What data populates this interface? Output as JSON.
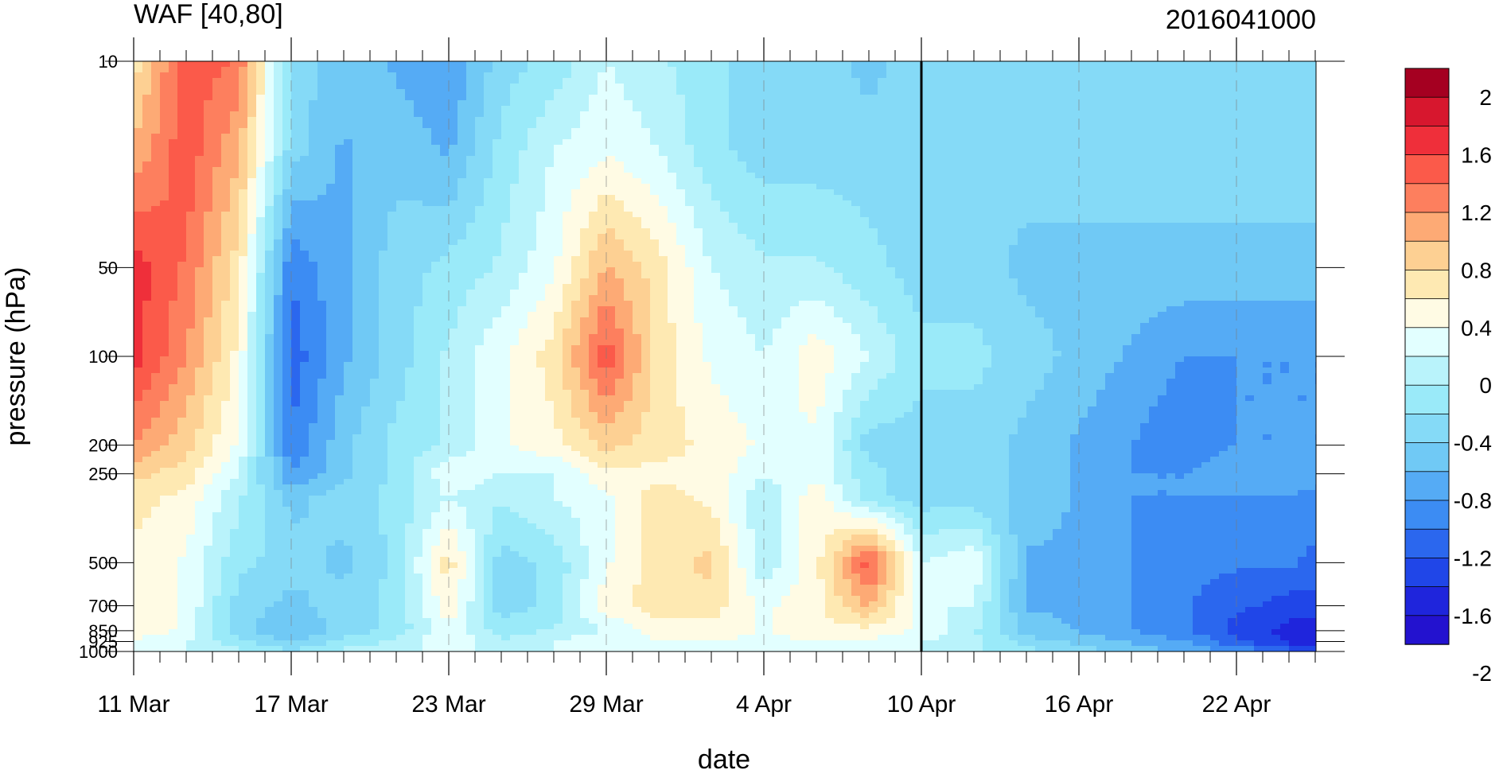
{
  "chart_data": {
    "type": "heatmap",
    "title": "WAF [40,80]",
    "right_title": "2016041000",
    "xlabel": "date",
    "ylabel": "pressure (hPa)",
    "x_ticks": [
      "11 Mar",
      "17 Mar",
      "23 Mar",
      "29 Mar",
      "4 Apr",
      "10 Apr",
      "16 Apr",
      "22 Apr"
    ],
    "y_ticks": [
      "10",
      "50",
      "100",
      "200",
      "250",
      "500",
      "700",
      "850",
      "925",
      "1000"
    ],
    "marker_date": "10 Apr",
    "colorbar": {
      "labels": [
        "2",
        "1.6",
        "1.2",
        "0.8",
        "0.4",
        "0",
        "-0.4",
        "-0.8",
        "-1.2",
        "-1.6",
        "-2"
      ],
      "colors": [
        "#a50021",
        "#d7172e",
        "#ef2f3a",
        "#fb5a4a",
        "#fd7f5e",
        "#fdaa75",
        "#fdd093",
        "#fee9b2",
        "#fffbe4",
        "#e2ffff",
        "#b9f3fb",
        "#9aeaf9",
        "#85daf7",
        "#70c9f5",
        "#55abf5",
        "#3c8cf3",
        "#2b67ee",
        "#2046e8",
        "#1f25dc",
        "#2312cf"
      ]
    },
    "grid": {
      "times": [
        "11 Mar",
        "13 Mar",
        "15 Mar",
        "17 Mar",
        "19 Mar",
        "21 Mar",
        "23 Mar",
        "25 Mar",
        "27 Mar",
        "29 Mar",
        "31 Mar",
        "2 Apr",
        "4 Apr",
        "6 Apr",
        "8 Apr",
        "10 Apr",
        "12 Apr",
        "14 Apr",
        "16 Apr",
        "18 Apr",
        "20 Apr",
        "22 Apr",
        "24 Apr",
        "26 Apr"
      ],
      "levels": [
        10,
        20,
        50,
        100,
        200,
        250,
        300,
        500,
        700,
        850,
        925,
        1000
      ],
      "values": [
        [
          0.6,
          1.6,
          1.4,
          -0.6,
          -0.8,
          -1.0,
          -1.2,
          -0.6,
          -0.4,
          0.0,
          -0.2,
          -0.4,
          -0.6,
          -0.6,
          -0.8,
          -0.6,
          -0.6,
          -0.6,
          -0.6,
          -0.6,
          -0.6,
          -0.6,
          -0.6,
          -0.6
        ],
        [
          1.0,
          1.6,
          1.0,
          -0.6,
          -1.0,
          -0.8,
          -1.0,
          -0.4,
          0.0,
          0.2,
          0.0,
          -0.4,
          -0.6,
          -0.6,
          -0.6,
          -0.6,
          -0.6,
          -0.6,
          -0.6,
          -0.6,
          -0.6,
          -0.6,
          -0.6,
          -0.6
        ],
        [
          1.8,
          1.4,
          0.6,
          -1.4,
          -1.0,
          -0.6,
          -0.4,
          -0.2,
          0.2,
          1.0,
          0.6,
          0.0,
          -0.2,
          -0.2,
          -0.4,
          -0.6,
          -0.6,
          -0.8,
          -0.8,
          -0.8,
          -0.8,
          -0.8,
          -0.8,
          -0.8
        ],
        [
          1.8,
          1.2,
          0.4,
          -1.6,
          -1.0,
          -0.6,
          -0.2,
          0.2,
          0.6,
          1.6,
          0.6,
          0.2,
          0.0,
          0.4,
          0.0,
          -0.4,
          -0.4,
          -0.6,
          -0.8,
          -1.0,
          -1.2,
          -1.2,
          -1.2,
          -1.2
        ],
        [
          1.2,
          0.8,
          0.2,
          -1.4,
          -0.8,
          -0.4,
          -0.2,
          0.2,
          0.4,
          0.8,
          0.6,
          0.4,
          0.2,
          0.2,
          -0.6,
          -0.6,
          -0.6,
          -0.8,
          -1.0,
          -1.2,
          -1.4,
          -1.2,
          -1.2,
          -1.2
        ],
        [
          0.8,
          0.6,
          0.0,
          -1.2,
          -0.8,
          -0.4,
          0.2,
          0.0,
          0.0,
          0.4,
          0.4,
          0.4,
          0.0,
          0.2,
          -0.4,
          -0.6,
          -0.6,
          -0.8,
          -1.0,
          -1.2,
          -1.2,
          -1.0,
          -1.0,
          -1.2
        ],
        [
          0.6,
          0.4,
          -0.2,
          -0.8,
          -0.6,
          -0.4,
          0.0,
          -0.2,
          0.0,
          0.2,
          0.6,
          0.4,
          -0.2,
          0.4,
          -0.4,
          -0.6,
          -0.6,
          -0.8,
          -1.0,
          -1.2,
          -1.2,
          -1.2,
          -1.2,
          -1.4
        ],
        [
          0.4,
          0.2,
          -0.4,
          -0.6,
          -0.8,
          -0.4,
          0.6,
          -0.6,
          -0.4,
          0.2,
          0.6,
          0.8,
          -0.2,
          0.4,
          1.6,
          0.0,
          0.2,
          -1.0,
          -1.0,
          -1.2,
          -1.4,
          -1.4,
          -1.4,
          -1.6
        ],
        [
          0.4,
          0.2,
          -0.6,
          -0.8,
          -0.6,
          -0.4,
          0.4,
          -0.6,
          -0.4,
          0.4,
          0.6,
          0.6,
          0.2,
          0.4,
          1.0,
          0.0,
          0.0,
          -1.0,
          -1.0,
          -1.2,
          -1.4,
          -1.6,
          -1.8,
          -1.8
        ],
        [
          0.4,
          0.2,
          -0.6,
          -1.0,
          -0.6,
          -0.4,
          0.2,
          -0.4,
          -0.2,
          0.0,
          0.4,
          0.4,
          0.2,
          0.4,
          0.4,
          0.2,
          -0.2,
          -0.8,
          -1.0,
          -1.2,
          -1.4,
          -1.8,
          -2.0,
          -2.0
        ],
        [
          0.2,
          0.0,
          -0.4,
          -0.8,
          -0.4,
          -0.2,
          0.2,
          -0.2,
          0.0,
          0.2,
          0.2,
          0.2,
          0.2,
          0.2,
          0.2,
          0.0,
          -0.2,
          -0.6,
          -0.8,
          -1.0,
          -1.2,
          -1.6,
          -2.0,
          -2.0
        ],
        [
          0.0,
          0.0,
          -0.2,
          -0.4,
          -0.2,
          0.0,
          0.0,
          0.0,
          0.0,
          0.0,
          0.0,
          0.0,
          0.0,
          0.0,
          0.0,
          0.0,
          -0.2,
          -0.4,
          -0.6,
          -0.8,
          -1.0,
          -1.2,
          -1.6,
          -1.8
        ]
      ]
    }
  }
}
